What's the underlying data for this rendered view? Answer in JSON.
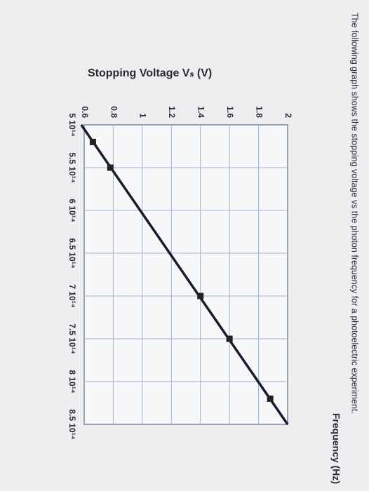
{
  "chart_data": {
    "type": "scatter",
    "title": "The following graph shows the stopping voltage vs the photon frequency for a photoelectric experiment.",
    "ylabel": "Stopping Voltage Vₛ (V)",
    "xlabel": "Frequency (Hz)",
    "x": [
      520000000000000.0,
      550000000000000.0,
      700000000000000.0,
      750000000000000.0,
      820000000000000.0
    ],
    "values": [
      0.66,
      0.78,
      1.4,
      1.6,
      1.88
    ],
    "color": "#222222",
    "line": {
      "x": [
        500000000000000.0,
        850000000000000.0
      ],
      "values": [
        0.58,
        2.0
      ],
      "color": "#1a1a2e"
    },
    "xlim": [
      500000000000000.0,
      850000000000000.0
    ],
    "xticks": [
      {
        "value": 500000000000000.0,
        "label": "5 10¹⁴"
      },
      {
        "value": 550000000000000.0,
        "label": "5.5 10¹⁴"
      },
      {
        "value": 600000000000000.0,
        "label": "6 10¹⁴"
      },
      {
        "value": 650000000000000.0,
        "label": "6.5 10¹⁴"
      },
      {
        "value": 700000000000000.0,
        "label": "7 10¹⁴"
      },
      {
        "value": 750000000000000.0,
        "label": "7.5 10¹⁴"
      },
      {
        "value": 800000000000000.0,
        "label": "8 10¹⁴"
      },
      {
        "value": 850000000000000.0,
        "label": "8.5 10¹⁴"
      }
    ],
    "ylim": [
      0.6,
      2
    ],
    "yticks": [
      0.6,
      0.8,
      1,
      1.2,
      1.4,
      1.6,
      1.8,
      2
    ],
    "grid": true
  }
}
